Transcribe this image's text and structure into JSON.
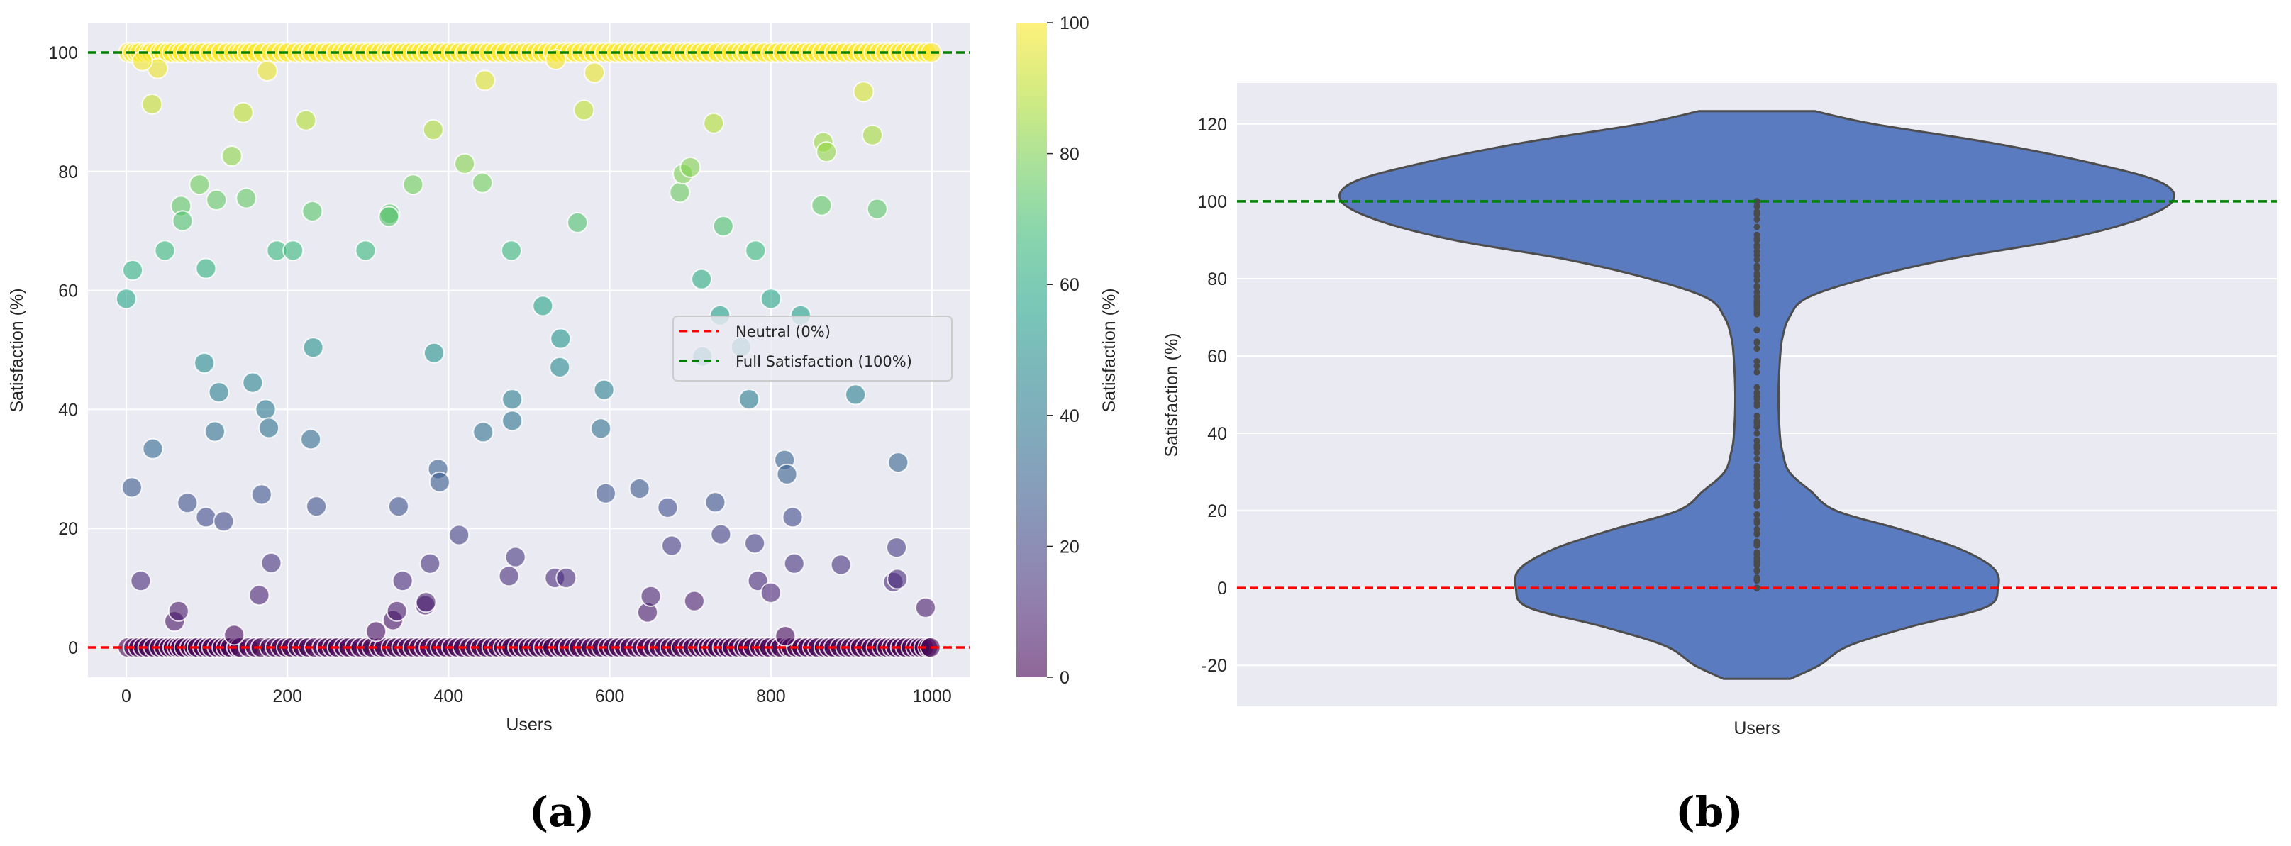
{
  "chart_data": [
    {
      "type": "scatter",
      "panel_label": "(a)",
      "xlabel": "Users",
      "ylabel": "Satisfaction (%)",
      "xlim": [
        -47.5,
        1047.5
      ],
      "ylim": [
        -5,
        105
      ],
      "xticks": [
        "0",
        "200",
        "400",
        "600",
        "800",
        "1000"
      ],
      "yticks": [
        "0",
        "20",
        "40",
        "60",
        "80",
        "100"
      ],
      "grid": true,
      "colormap": "viridis",
      "marker_alpha": 0.6,
      "colorbar": {
        "label": "Satisfaction (%)",
        "range": [
          0,
          100
        ],
        "ticks": [
          "0",
          "20",
          "40",
          "60",
          "80",
          "100"
        ]
      },
      "reference_lines": [
        {
          "y": 0,
          "label": "Neutral (0%)",
          "color": "#ff0000",
          "style": "dashed"
        },
        {
          "y": 100,
          "label": "Full Satisfaction (100%)",
          "color": "#008000",
          "style": "dashed"
        }
      ],
      "legend_position": "center-right",
      "points": [
        [
          0,
          58.6
        ],
        [
          8,
          63.4
        ],
        [
          7,
          26.9
        ],
        [
          18,
          11.2
        ],
        [
          33,
          33.4
        ],
        [
          32,
          91.3
        ],
        [
          39,
          97.3
        ],
        [
          20,
          98.6
        ],
        [
          48,
          66.7
        ],
        [
          68,
          74.2
        ],
        [
          70,
          71.7
        ],
        [
          60,
          4.4
        ],
        [
          65,
          6.1
        ],
        [
          76,
          24.3
        ],
        [
          91,
          77.8
        ],
        [
          99,
          63.7
        ],
        [
          97,
          47.8
        ],
        [
          99,
          21.9
        ],
        [
          110,
          36.3
        ],
        [
          112,
          75.2
        ],
        [
          115,
          42.9
        ],
        [
          121,
          21.2
        ],
        [
          131,
          82.6
        ],
        [
          134,
          2.1
        ],
        [
          145,
          89.9
        ],
        [
          149,
          75.5
        ],
        [
          157,
          44.5
        ],
        [
          168,
          25.7
        ],
        [
          165,
          8.8
        ],
        [
          173,
          40.0
        ],
        [
          175,
          96.9
        ],
        [
          177,
          36.9
        ],
        [
          180,
          14.2
        ],
        [
          187,
          66.7
        ],
        [
          207,
          66.7
        ],
        [
          223,
          88.6
        ],
        [
          231,
          73.3
        ],
        [
          229,
          35.0
        ],
        [
          232,
          50.4
        ],
        [
          236,
          23.7
        ],
        [
          297,
          66.7
        ],
        [
          310,
          2.7
        ],
        [
          327,
          72.9
        ],
        [
          326,
          72.4
        ],
        [
          331,
          4.6
        ],
        [
          336,
          6.1
        ],
        [
          338,
          23.7
        ],
        [
          343,
          11.2
        ],
        [
          356,
          77.8
        ],
        [
          371,
          7.1
        ],
        [
          372,
          7.6
        ],
        [
          377,
          14.1
        ],
        [
          381,
          87.0
        ],
        [
          382,
          49.5
        ],
        [
          387,
          30.0
        ],
        [
          389,
          27.8
        ],
        [
          413,
          18.9
        ],
        [
          420,
          81.3
        ],
        [
          442,
          78.1
        ],
        [
          443,
          36.2
        ],
        [
          445,
          95.3
        ],
        [
          475,
          12.0
        ],
        [
          478,
          66.7
        ],
        [
          479,
          41.7
        ],
        [
          479,
          38.1
        ],
        [
          483,
          15.2
        ],
        [
          517,
          57.4
        ],
        [
          533,
          98.8
        ],
        [
          532,
          11.7
        ],
        [
          539,
          51.9
        ],
        [
          538,
          47.1
        ],
        [
          546,
          11.7
        ],
        [
          560,
          71.4
        ],
        [
          568,
          90.3
        ],
        [
          581,
          96.6
        ],
        [
          589,
          36.8
        ],
        [
          593,
          43.3
        ],
        [
          595,
          25.9
        ],
        [
          637,
          26.7
        ],
        [
          647,
          5.9
        ],
        [
          651,
          8.6
        ],
        [
          672,
          23.5
        ],
        [
          677,
          17.1
        ],
        [
          687,
          76.5
        ],
        [
          691,
          79.6
        ],
        [
          700,
          80.7
        ],
        [
          705,
          7.8
        ],
        [
          714,
          61.9
        ],
        [
          729,
          88.1
        ],
        [
          731,
          24.4
        ],
        [
          737,
          55.8
        ],
        [
          738,
          19.0
        ],
        [
          741,
          70.8
        ],
        [
          715,
          48.9
        ],
        [
          763,
          50.5
        ],
        [
          773,
          41.7
        ],
        [
          780,
          17.5
        ],
        [
          781,
          66.7
        ],
        [
          784,
          11.2
        ],
        [
          800,
          58.6
        ],
        [
          800,
          9.2
        ],
        [
          817,
          31.5
        ],
        [
          820,
          29.1
        ],
        [
          818,
          1.9
        ],
        [
          827,
          21.9
        ],
        [
          829,
          14.1
        ],
        [
          837,
          55.8
        ],
        [
          863,
          74.3
        ],
        [
          865,
          84.9
        ],
        [
          869,
          83.3
        ],
        [
          887,
          13.9
        ],
        [
          905,
          42.5
        ],
        [
          915,
          93.4
        ],
        [
          926,
          86.1
        ],
        [
          932,
          73.7
        ],
        [
          952,
          11.0
        ],
        [
          957,
          11.5
        ],
        [
          956,
          16.8
        ],
        [
          958,
          31.1
        ],
        [
          992,
          6.7
        ]
      ],
      "zero_users": [
        2,
        9,
        15,
        21,
        27,
        34,
        41,
        47,
        53,
        58,
        63,
        67,
        72,
        79,
        84,
        88,
        95,
        101,
        106,
        113,
        119,
        124,
        129,
        137,
        141,
        152,
        160,
        167,
        178,
        185,
        192,
        199,
        205,
        213,
        219,
        226,
        234,
        243,
        249,
        256,
        262,
        270,
        276,
        284,
        291,
        299,
        305,
        314,
        320,
        329,
        335,
        342,
        349,
        356,
        363,
        370,
        376,
        384,
        390,
        397,
        404,
        411,
        418,
        426,
        433,
        440,
        447,
        454,
        461,
        468,
        473,
        478,
        486,
        492,
        499,
        505,
        511,
        518,
        524,
        529,
        537,
        542,
        549,
        556,
        562,
        570,
        577,
        584,
        590,
        598,
        604,
        611,
        618,
        625,
        633,
        640,
        646,
        654,
        661,
        668,
        675,
        682,
        689,
        697,
        703,
        710,
        716,
        722,
        727,
        733,
        740,
        746,
        752,
        759,
        766,
        771,
        778,
        786,
        792,
        798,
        806,
        812,
        821,
        825,
        832,
        838,
        845,
        852,
        858,
        866,
        872,
        878,
        886,
        893,
        899,
        906,
        911,
        918,
        925,
        931,
        938,
        944,
        950,
        955,
        961,
        967,
        974,
        980,
        985,
        990,
        995,
        998
      ],
      "full_users": [
        3,
        8,
        13,
        17,
        23,
        28,
        31,
        36,
        42,
        46,
        52,
        57,
        64,
        69,
        75,
        83,
        90,
        96,
        104,
        111,
        118,
        126,
        133,
        139,
        144,
        150,
        155,
        162,
        170,
        179,
        186,
        194,
        201,
        210,
        218,
        225,
        230,
        238,
        246,
        253,
        261,
        268,
        274,
        281,
        288,
        295,
        302,
        309,
        316,
        323,
        328,
        333,
        340,
        347,
        353,
        360,
        366,
        373,
        379,
        386,
        393,
        400,
        407,
        414,
        421,
        429,
        436,
        444,
        450,
        457,
        464,
        471,
        480,
        488,
        495,
        502,
        509,
        516,
        523,
        530,
        536,
        544,
        551,
        558,
        565,
        573,
        580,
        587,
        594,
        601,
        608,
        615,
        622,
        629,
        636,
        641,
        648,
        655,
        663,
        670,
        678,
        685,
        693,
        699,
        706,
        712,
        719,
        726,
        734,
        743,
        750,
        757,
        764,
        770,
        777,
        785,
        793,
        801,
        808,
        815,
        823,
        830,
        836,
        843,
        850,
        857,
        864,
        871,
        879,
        885,
        892,
        900,
        907,
        914,
        921,
        928,
        935,
        942,
        948,
        954,
        960,
        966,
        973,
        979,
        986,
        993,
        999
      ]
    },
    {
      "type": "violin",
      "panel_label": "(b)",
      "xlabel": "Users",
      "ylabel": "Satisfaction (%)",
      "ylim": [
        -30.6,
        130.6
      ],
      "yticks": [
        "-20",
        "0",
        "20",
        "40",
        "60",
        "80",
        "100",
        "120"
      ],
      "grid": true,
      "fill_color": "#5a7bbf",
      "edge_color": "#4d4d4d",
      "inner": "point",
      "reference_lines": [
        {
          "y": 0,
          "color": "#ff0000",
          "style": "dashed"
        },
        {
          "y": 100,
          "color": "#008000",
          "style": "dashed"
        }
      ],
      "density_profile": [
        [
          123.3,
          0.14
        ],
        [
          120,
          0.28
        ],
        [
          115,
          0.57
        ],
        [
          110,
          0.8
        ],
        [
          105,
          0.97
        ],
        [
          100,
          1.0
        ],
        [
          95,
          0.91
        ],
        [
          90,
          0.73
        ],
        [
          85,
          0.46
        ],
        [
          80,
          0.26
        ],
        [
          75,
          0.12
        ],
        [
          70,
          0.078
        ],
        [
          65,
          0.062
        ],
        [
          60,
          0.056
        ],
        [
          50,
          0.052
        ],
        [
          40,
          0.055
        ],
        [
          35,
          0.062
        ],
        [
          30,
          0.078
        ],
        [
          25,
          0.13
        ],
        [
          20,
          0.19
        ],
        [
          15,
          0.35
        ],
        [
          10,
          0.49
        ],
        [
          5,
          0.57
        ],
        [
          0,
          0.58
        ],
        [
          -5,
          0.55
        ],
        [
          -10,
          0.37
        ],
        [
          -15,
          0.22
        ],
        [
          -20,
          0.15
        ],
        [
          -23.5,
          0.08
        ]
      ]
    }
  ]
}
